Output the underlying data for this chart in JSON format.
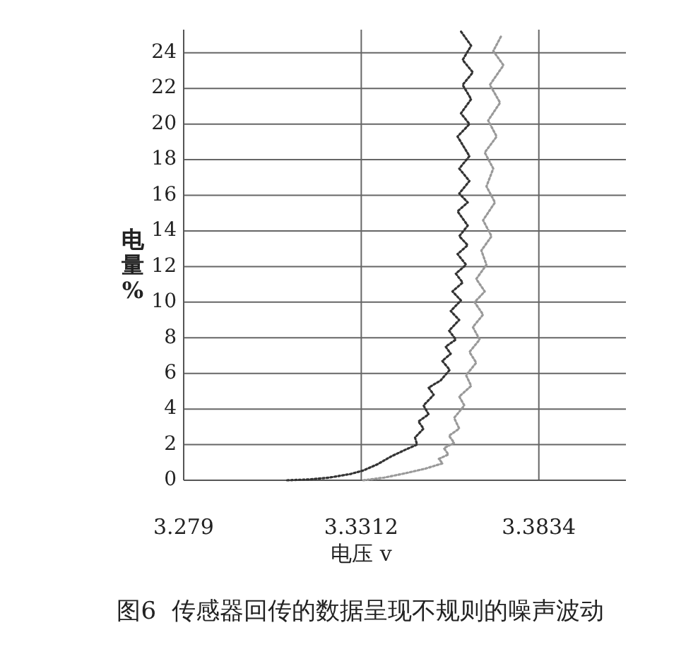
{
  "chart_data": {
    "type": "line",
    "title": "图6  传感器回传的数据呈现不规则的噪声波动",
    "xlabel": "电压 v",
    "ylabel": "电量%",
    "xlim": [
      3.279,
      3.409
    ],
    "xticks": [
      3.279,
      3.3312,
      3.3834
    ],
    "ylim": [
      0,
      25.3
    ],
    "yticks": [
      0,
      2,
      4,
      6,
      8,
      10,
      12,
      14,
      16,
      18,
      20,
      22,
      24
    ],
    "grid": true,
    "line_style": "dotted",
    "marker": "none",
    "series": [
      {
        "color": "#333333",
        "x": [
          3.3094,
          3.316,
          3.3218,
          3.328,
          3.3318,
          3.336,
          3.3401,
          3.344,
          3.3476,
          3.347,
          3.3495,
          3.348,
          3.351,
          3.3495,
          3.3525,
          3.351,
          3.3545,
          3.3572,
          3.355,
          3.3575,
          3.356,
          3.359,
          3.357,
          3.36,
          3.3575,
          3.3605,
          3.358,
          3.361,
          3.359,
          3.362,
          3.3595,
          3.3625,
          3.36,
          3.3625,
          3.3595,
          3.3625,
          3.36,
          3.363,
          3.36,
          3.363,
          3.3595,
          3.363,
          3.3605,
          3.3635,
          3.361,
          3.364,
          3.361,
          3.3635,
          3.3605
        ],
        "values": [
          0,
          0.05,
          0.15,
          0.35,
          0.55,
          0.9,
          1.35,
          1.7,
          2.0,
          2.4,
          2.9,
          3.3,
          3.7,
          4.2,
          4.8,
          5.2,
          5.6,
          6.2,
          6.7,
          7.1,
          7.5,
          7.9,
          8.4,
          9.0,
          9.5,
          10.1,
          10.6,
          11.1,
          11.6,
          12.1,
          12.7,
          13.2,
          13.7,
          14.3,
          15.1,
          15.6,
          16.1,
          16.8,
          17.5,
          18.2,
          19.3,
          20.0,
          20.6,
          21.4,
          22.2,
          22.9,
          23.6,
          24.4,
          25.2
        ]
      },
      {
        "color": "#999999",
        "x": [
          3.3318,
          3.338,
          3.3443,
          3.35,
          3.3551,
          3.354,
          3.3568,
          3.3555,
          3.3585,
          3.357,
          3.36,
          3.3585,
          3.3615,
          3.36,
          3.3635,
          3.362,
          3.365,
          3.363,
          3.366,
          3.364,
          3.367,
          3.3645,
          3.3675,
          3.365,
          3.368,
          3.3665,
          3.3695,
          3.367,
          3.3705,
          3.368,
          3.37,
          3.3675,
          3.371,
          3.3685,
          3.372,
          3.369,
          3.373,
          3.37,
          3.3725
        ],
        "values": [
          0,
          0.15,
          0.4,
          0.65,
          0.95,
          1.2,
          1.45,
          1.8,
          2.1,
          2.5,
          2.9,
          3.5,
          4.2,
          4.7,
          5.3,
          5.9,
          6.6,
          7.2,
          7.9,
          8.6,
          9.3,
          10.0,
          10.6,
          11.3,
          12.1,
          12.9,
          13.7,
          14.6,
          15.6,
          16.5,
          17.5,
          18.4,
          19.3,
          20.2,
          21.2,
          22.2,
          23.3,
          24.1,
          25.0
        ]
      }
    ]
  }
}
